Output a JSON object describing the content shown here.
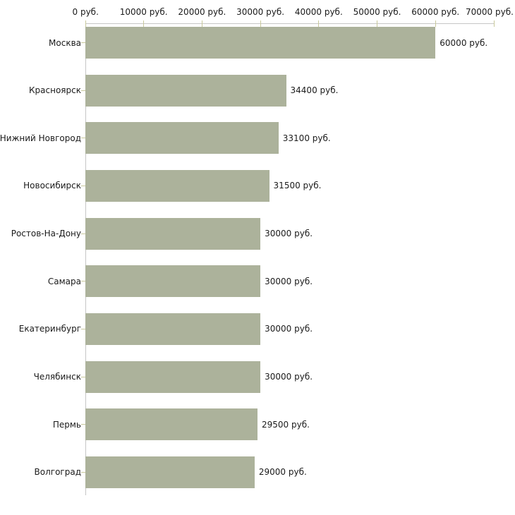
{
  "chart_data": {
    "type": "bar",
    "orientation": "horizontal",
    "categories": [
      "Москва",
      "Красноярск",
      "Нижний Новгород",
      "Новосибирск",
      "Ростов-На-Дону",
      "Самара",
      "Екатеринбург",
      "Челябинск",
      "Пермь",
      "Волгоград"
    ],
    "values": [
      60000,
      34400,
      33100,
      31500,
      30000,
      30000,
      30000,
      30000,
      29500,
      29000
    ],
    "value_labels": [
      "60000 руб.",
      "34400 руб.",
      "33100 руб.",
      "31500 руб.",
      "30000 руб.",
      "30000 руб.",
      "30000 руб.",
      "30000 руб.",
      "29500 руб.",
      "29000 руб."
    ],
    "x_ticks": [
      0,
      10000,
      20000,
      30000,
      40000,
      50000,
      60000,
      70000
    ],
    "x_tick_labels": [
      "0 руб.",
      "10000 руб.",
      "20000 руб.",
      "30000 руб.",
      "40000 руб.",
      "50000 руб.",
      "60000 руб.",
      "70000 руб."
    ],
    "xlim": [
      0,
      70000
    ],
    "grid": false,
    "legend": false,
    "axis_position": "top",
    "colors": {
      "bar_fill": "#acb29b",
      "axis_line": "#c6c6c6",
      "tick_mark": "#c9c99c",
      "text": "#1a1a1a",
      "background": "#ffffff"
    }
  }
}
